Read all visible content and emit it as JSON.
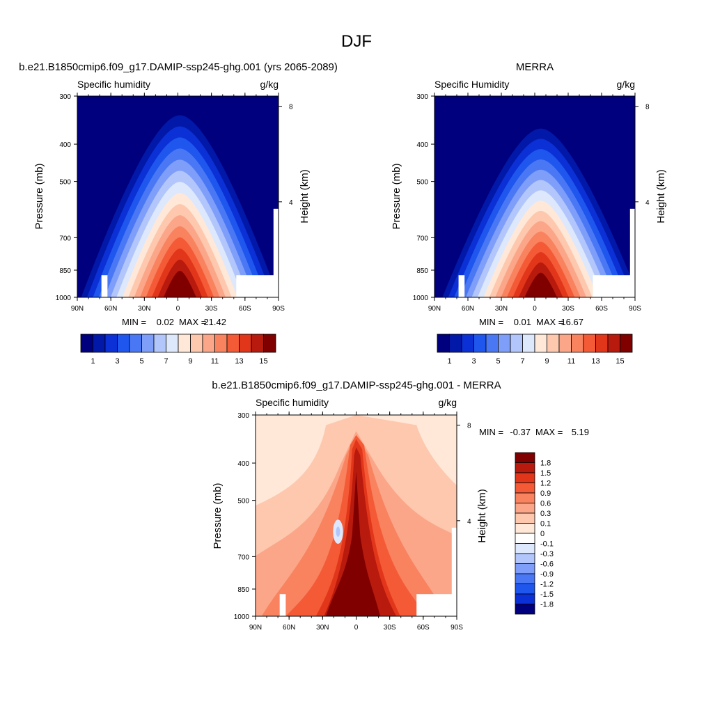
{
  "figure": {
    "title": "DJF"
  },
  "panels": [
    {
      "title": "b.e21.B1850cmip6.f09_g17.DAMIP-ssp245-ghg.001 (yrs 2065-2089)",
      "left_label": "Specific humidity",
      "right_label": "g/kg",
      "stats": {
        "min_label": "MIN =",
        "min": "0.02",
        "max_label": "MAX =",
        "max": "21.42"
      }
    },
    {
      "title": "MERRA",
      "left_label": "Specific Humidity",
      "right_label": "g/kg",
      "stats": {
        "min_label": "MIN =",
        "min": "0.01",
        "max_label": "MAX =",
        "max": "16.67"
      }
    },
    {
      "title": "b.e21.B1850cmip6.f09_g17.DAMIP-ssp245-ghg.001 - MERRA",
      "left_label": "Specific humidity",
      "right_label": "g/kg",
      "stats": {
        "min_label": "MIN =",
        "min": "-0.37",
        "max_label": "MAX =",
        "max": "5.19"
      }
    }
  ],
  "chart_data": [
    {
      "type": "heatmap",
      "title": "b.e21.B1850cmip6.f09_g17.DAMIP-ssp245-ghg.001 (yrs 2065-2089)",
      "variable": "Specific humidity",
      "units": "g/kg",
      "xlabel": "",
      "ylabel": "Pressure (mb)",
      "y2label": "Height (km)",
      "x_ticks": [
        "90N",
        "60N",
        "30N",
        "0",
        "30S",
        "60S",
        "90S"
      ],
      "y_ticks": [
        300,
        400,
        500,
        700,
        850,
        1000
      ],
      "y2_ticks": [
        8,
        4
      ],
      "ylim": [
        1000,
        300
      ],
      "y_scale": "log",
      "colorbar_labels": [
        1,
        3,
        5,
        7,
        9,
        11,
        13,
        15
      ],
      "colorbar_orientation": "horizontal",
      "min": 0.02,
      "max": 21.42
    },
    {
      "type": "heatmap",
      "title": "MERRA",
      "variable": "Specific Humidity",
      "units": "g/kg",
      "xlabel": "",
      "ylabel": "Pressure (mb)",
      "y2label": "Height (km)",
      "x_ticks": [
        "90N",
        "60N",
        "30N",
        "0",
        "30S",
        "60S",
        "90S"
      ],
      "y_ticks": [
        300,
        400,
        500,
        700,
        850,
        1000
      ],
      "y2_ticks": [
        8,
        4
      ],
      "ylim": [
        1000,
        300
      ],
      "y_scale": "log",
      "colorbar_labels": [
        1,
        3,
        5,
        7,
        9,
        11,
        13,
        15
      ],
      "colorbar_orientation": "horizontal",
      "min": 0.01,
      "max": 16.67
    },
    {
      "type": "heatmap",
      "title": "b.e21.B1850cmip6.f09_g17.DAMIP-ssp245-ghg.001 - MERRA",
      "variable": "Specific humidity",
      "units": "g/kg",
      "xlabel": "",
      "ylabel": "Pressure (mb)",
      "y2label": "Height (km)",
      "x_ticks": [
        "90N",
        "60N",
        "30N",
        "0",
        "30S",
        "60S",
        "90S"
      ],
      "y_ticks": [
        300,
        400,
        500,
        700,
        850,
        1000
      ],
      "y2_ticks": [
        8,
        4
      ],
      "ylim": [
        1000,
        300
      ],
      "y_scale": "log",
      "colorbar_labels": [
        1.8,
        1.5,
        1.2,
        0.9,
        0.6,
        0.3,
        0.1,
        0,
        -0.1,
        -0.3,
        -0.6,
        -0.9,
        -1.2,
        -1.5,
        -1.8
      ],
      "colorbar_orientation": "vertical",
      "min": -0.37,
      "max": 5.19
    }
  ],
  "palettes": {
    "sequential": [
      "#00007f",
      "#0218a8",
      "#0a30d6",
      "#1e56ee",
      "#4a78f5",
      "#7e9ef9",
      "#b2c6fb",
      "#dde8fd",
      "#ffe8d8",
      "#fdc8ae",
      "#fba689",
      "#f9825f",
      "#f45a36",
      "#e2361b",
      "#b81a0e",
      "#800000"
    ],
    "diff": [
      "#800000",
      "#b81a0e",
      "#e2361b",
      "#f45a36",
      "#f9825f",
      "#fba689",
      "#fdc8ae",
      "#ffe8d8",
      "#ffffff",
      "#dde8fd",
      "#b2c6fb",
      "#7e9ef9",
      "#4a78f5",
      "#1e56ee",
      "#0a30d6",
      "#00007f"
    ]
  }
}
